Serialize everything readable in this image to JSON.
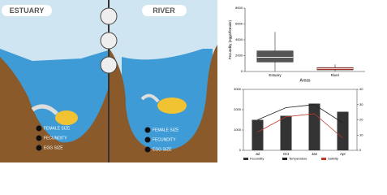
{
  "illustration": {
    "estuary_title": "ESTUARY",
    "river_title": "RIVER",
    "estuary_traits": [
      "FEMALE SIZE",
      "FECUNDITY",
      "EGG SIZE"
    ],
    "river_traits": [
      "FEMALE SIZE",
      "FECUNDITY",
      "EGG SIZE"
    ]
  },
  "chart_data": [
    {
      "type": "box",
      "y_label": "Fecundity (eggs/female)",
      "x_label": "Areas",
      "categories": [
        "Estuary",
        "River"
      ],
      "colors": [
        "#555555",
        "#c0392b"
      ],
      "min": [
        0,
        50
      ],
      "q1": [
        1200,
        200
      ],
      "median": [
        1800,
        350
      ],
      "q3": [
        2600,
        500
      ],
      "max": [
        5000,
        900
      ],
      "ylim": [
        0,
        8000
      ],
      "yticks": [
        0,
        2000,
        4000,
        6000,
        8000
      ]
    },
    {
      "type": "combo",
      "categories": [
        "Jul",
        "Oct",
        "Jan",
        "Apr"
      ],
      "bars": {
        "name": "Fecundity",
        "color": "#333333",
        "values": [
          1500,
          1700,
          2300,
          1900
        ]
      },
      "series": [
        {
          "name": "Temperature",
          "color": "#222222",
          "axis": "y2",
          "values": [
            20,
            28,
            30,
            18
          ]
        },
        {
          "name": "Salinity",
          "color": "#c0392b",
          "axis": "y2",
          "values": [
            12,
            22,
            24,
            8
          ]
        }
      ],
      "ylim": [
        0,
        3000
      ],
      "yticks": [
        0,
        1000,
        2000,
        3000
      ],
      "y2lim": [
        0,
        40
      ],
      "y2ticks": [
        0,
        10,
        20,
        30,
        40
      ]
    }
  ]
}
